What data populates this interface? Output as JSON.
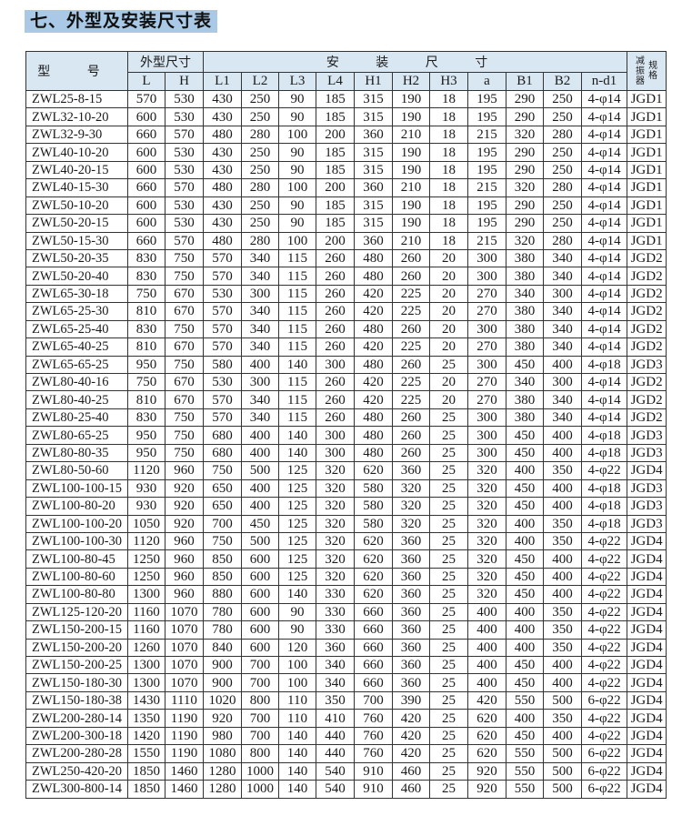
{
  "title": "七、外型及安装尺寸表",
  "header": {
    "model": "型 号",
    "outer": "外型尺寸",
    "install": "安 装 尺 寸",
    "vibration": "减振器",
    "spec": "规格",
    "columns": [
      "L",
      "H",
      "L1",
      "L2",
      "L3",
      "L4",
      "H1",
      "H2",
      "H3",
      "a",
      "B1",
      "B2",
      "n-d1"
    ]
  },
  "rows": [
    [
      "ZWL25-8-15",
      "570",
      "530",
      "430",
      "250",
      "90",
      "185",
      "315",
      "190",
      "18",
      "195",
      "290",
      "250",
      "4-φ14",
      "JGD1"
    ],
    [
      "ZWL32-10-20",
      "600",
      "530",
      "430",
      "250",
      "90",
      "185",
      "315",
      "190",
      "18",
      "195",
      "290",
      "250",
      "4-φ14",
      "JGD1"
    ],
    [
      "ZWL32-9-30",
      "660",
      "570",
      "480",
      "280",
      "100",
      "200",
      "360",
      "210",
      "18",
      "215",
      "320",
      "280",
      "4-φ14",
      "JGD1"
    ],
    [
      "ZWL40-10-20",
      "600",
      "530",
      "430",
      "250",
      "90",
      "185",
      "315",
      "190",
      "18",
      "195",
      "290",
      "250",
      "4-φ14",
      "JGD1"
    ],
    [
      "ZWL40-20-15",
      "600",
      "530",
      "430",
      "250",
      "90",
      "185",
      "315",
      "190",
      "18",
      "195",
      "290",
      "250",
      "4-φ14",
      "JGD1"
    ],
    [
      "ZWL40-15-30",
      "660",
      "570",
      "480",
      "280",
      "100",
      "200",
      "360",
      "210",
      "18",
      "215",
      "320",
      "280",
      "4-φ14",
      "JGD1"
    ],
    [
      "ZWL50-10-20",
      "600",
      "530",
      "430",
      "250",
      "90",
      "185",
      "315",
      "190",
      "18",
      "195",
      "290",
      "250",
      "4-φ14",
      "JGD1"
    ],
    [
      "ZWL50-20-15",
      "600",
      "530",
      "430",
      "250",
      "90",
      "185",
      "315",
      "190",
      "18",
      "195",
      "290",
      "250",
      "4-φ14",
      "JGD1"
    ],
    [
      "ZWL50-15-30",
      "660",
      "570",
      "480",
      "280",
      "100",
      "200",
      "360",
      "210",
      "18",
      "215",
      "320",
      "280",
      "4-φ14",
      "JGD1"
    ],
    [
      "ZWL50-20-35",
      "830",
      "750",
      "570",
      "340",
      "115",
      "260",
      "480",
      "260",
      "20",
      "300",
      "380",
      "340",
      "4-φ14",
      "JGD2"
    ],
    [
      "ZWL50-20-40",
      "830",
      "750",
      "570",
      "340",
      "115",
      "260",
      "480",
      "260",
      "20",
      "300",
      "380",
      "340",
      "4-φ14",
      "JGD2"
    ],
    [
      "ZWL65-30-18",
      "750",
      "670",
      "530",
      "300",
      "115",
      "260",
      "420",
      "225",
      "20",
      "270",
      "340",
      "300",
      "4-φ14",
      "JGD2"
    ],
    [
      "ZWL65-25-30",
      "810",
      "670",
      "570",
      "340",
      "115",
      "260",
      "420",
      "225",
      "20",
      "270",
      "380",
      "340",
      "4-φ14",
      "JGD2"
    ],
    [
      "ZWL65-25-40",
      "830",
      "750",
      "570",
      "340",
      "115",
      "260",
      "480",
      "260",
      "20",
      "300",
      "380",
      "340",
      "4-φ14",
      "JGD2"
    ],
    [
      "ZWL65-40-25",
      "810",
      "670",
      "570",
      "340",
      "115",
      "260",
      "420",
      "225",
      "20",
      "270",
      "380",
      "340",
      "4-φ14",
      "JGD2"
    ],
    [
      "ZWL65-65-25",
      "950",
      "750",
      "580",
      "400",
      "140",
      "300",
      "480",
      "260",
      "25",
      "300",
      "450",
      "400",
      "4-φ18",
      "JGD3"
    ],
    [
      "ZWL80-40-16",
      "750",
      "670",
      "530",
      "300",
      "115",
      "260",
      "420",
      "225",
      "20",
      "270",
      "340",
      "300",
      "4-φ14",
      "JGD2"
    ],
    [
      "ZWL80-40-25",
      "810",
      "670",
      "570",
      "340",
      "115",
      "260",
      "420",
      "225",
      "20",
      "270",
      "380",
      "340",
      "4-φ14",
      "JGD2"
    ],
    [
      "ZWL80-25-40",
      "830",
      "750",
      "570",
      "340",
      "115",
      "260",
      "480",
      "260",
      "25",
      "300",
      "380",
      "340",
      "4-φ14",
      "JGD2"
    ],
    [
      "ZWL80-65-25",
      "950",
      "750",
      "680",
      "400",
      "140",
      "300",
      "480",
      "260",
      "25",
      "300",
      "450",
      "400",
      "4-φ18",
      "JGD3"
    ],
    [
      "ZWL80-80-35",
      "950",
      "750",
      "680",
      "400",
      "140",
      "300",
      "480",
      "260",
      "25",
      "300",
      "450",
      "400",
      "4-φ18",
      "JGD3"
    ],
    [
      "ZWL80-50-60",
      "1120",
      "960",
      "750",
      "500",
      "125",
      "320",
      "620",
      "360",
      "25",
      "320",
      "400",
      "350",
      "4-φ22",
      "JGD4"
    ],
    [
      "ZWL100-100-15",
      "930",
      "920",
      "650",
      "400",
      "125",
      "320",
      "580",
      "320",
      "25",
      "320",
      "450",
      "400",
      "4-φ18",
      "JGD3"
    ],
    [
      "ZWL100-80-20",
      "930",
      "920",
      "650",
      "400",
      "125",
      "320",
      "580",
      "320",
      "25",
      "320",
      "450",
      "400",
      "4-φ18",
      "JGD3"
    ],
    [
      "ZWL100-100-20",
      "1050",
      "920",
      "700",
      "450",
      "125",
      "320",
      "580",
      "320",
      "25",
      "320",
      "400",
      "350",
      "4-φ18",
      "JGD3"
    ],
    [
      "ZWL100-100-30",
      "1120",
      "960",
      "750",
      "500",
      "125",
      "320",
      "620",
      "360",
      "25",
      "320",
      "400",
      "350",
      "4-φ22",
      "JGD4"
    ],
    [
      "ZWL100-80-45",
      "1250",
      "960",
      "850",
      "600",
      "125",
      "320",
      "620",
      "360",
      "25",
      "320",
      "450",
      "400",
      "4-φ22",
      "JGD4"
    ],
    [
      "ZWL100-80-60",
      "1250",
      "960",
      "850",
      "600",
      "125",
      "320",
      "620",
      "360",
      "25",
      "320",
      "450",
      "400",
      "4-φ22",
      "JGD4"
    ],
    [
      "ZWL100-80-80",
      "1300",
      "960",
      "880",
      "600",
      "140",
      "330",
      "620",
      "360",
      "25",
      "320",
      "450",
      "400",
      "4-φ22",
      "JGD4"
    ],
    [
      "ZWL125-120-20",
      "1160",
      "1070",
      "780",
      "600",
      "90",
      "330",
      "660",
      "360",
      "25",
      "400",
      "400",
      "350",
      "4-φ22",
      "JGD4"
    ],
    [
      "ZWL150-200-15",
      "1160",
      "1070",
      "780",
      "600",
      "90",
      "330",
      "660",
      "360",
      "25",
      "400",
      "400",
      "350",
      "4-φ22",
      "JGD4"
    ],
    [
      "ZWL150-200-20",
      "1260",
      "1070",
      "840",
      "600",
      "120",
      "360",
      "660",
      "360",
      "25",
      "400",
      "400",
      "350",
      "4-φ22",
      "JGD4"
    ],
    [
      "ZWL150-200-25",
      "1300",
      "1070",
      "900",
      "700",
      "100",
      "340",
      "660",
      "360",
      "25",
      "400",
      "450",
      "400",
      "4-φ22",
      "JGD4"
    ],
    [
      "ZWL150-180-30",
      "1300",
      "1070",
      "900",
      "700",
      "100",
      "340",
      "660",
      "360",
      "25",
      "400",
      "450",
      "400",
      "4-φ22",
      "JGD4"
    ],
    [
      "ZWL150-180-38",
      "1430",
      "1110",
      "1020",
      "800",
      "110",
      "350",
      "700",
      "390",
      "25",
      "420",
      "550",
      "500",
      "6-φ22",
      "JGD4"
    ],
    [
      "ZWL200-280-14",
      "1350",
      "1190",
      "920",
      "700",
      "110",
      "410",
      "760",
      "420",
      "25",
      "620",
      "400",
      "350",
      "4-φ22",
      "JGD4"
    ],
    [
      "ZWL200-300-18",
      "1420",
      "1190",
      "980",
      "700",
      "140",
      "440",
      "760",
      "420",
      "25",
      "620",
      "450",
      "400",
      "4-φ22",
      "JGD4"
    ],
    [
      "ZWL200-280-28",
      "1550",
      "1190",
      "1080",
      "800",
      "140",
      "440",
      "760",
      "420",
      "25",
      "620",
      "550",
      "500",
      "6-φ22",
      "JGD4"
    ],
    [
      "ZWL250-420-20",
      "1850",
      "1460",
      "1280",
      "1000",
      "140",
      "540",
      "910",
      "460",
      "25",
      "920",
      "550",
      "500",
      "6-φ22",
      "JGD4"
    ],
    [
      "ZWL300-800-14",
      "1850",
      "1460",
      "1280",
      "1000",
      "140",
      "540",
      "910",
      "460",
      "25",
      "920",
      "550",
      "500",
      "6-φ22",
      "JGD4"
    ]
  ]
}
